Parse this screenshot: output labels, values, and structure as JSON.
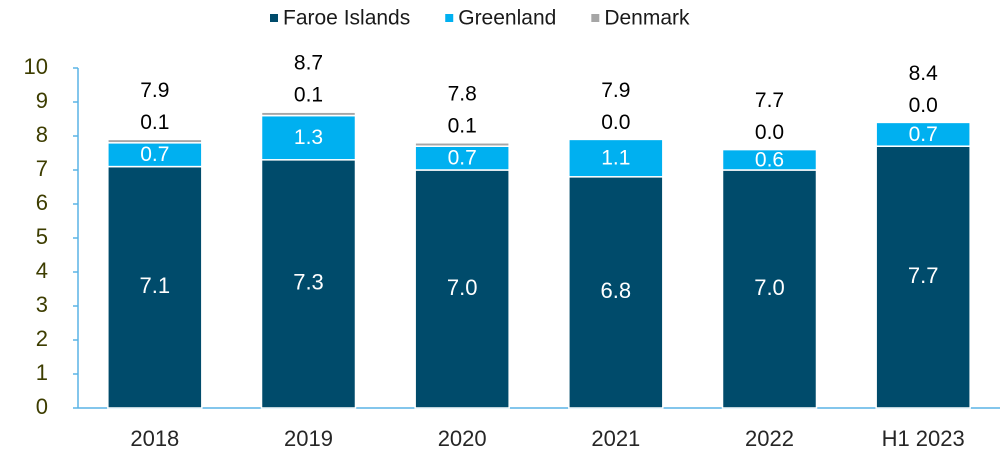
{
  "chart_data": {
    "type": "stacked_bar",
    "categories": [
      "2018",
      "2019",
      "2020",
      "2021",
      "2022",
      "H1 2023"
    ],
    "series": [
      {
        "name": "Faroe Islands",
        "color": "#004b6b",
        "values": [
          7.1,
          7.3,
          7.0,
          6.8,
          7.0,
          7.7
        ],
        "value_labels": [
          "7.1",
          "7.3",
          "7.0",
          "6.8",
          "7.0",
          "7.7"
        ]
      },
      {
        "name": "Greenland",
        "color": "#00b0f0",
        "values": [
          0.7,
          1.3,
          0.7,
          1.1,
          0.6,
          0.7
        ],
        "value_labels": [
          "0.7",
          "1.3",
          "0.7",
          "1.1",
          "0.6",
          "0.7"
        ]
      },
      {
        "name": "Denmark",
        "color": "#a6a6a6",
        "values": [
          0.1,
          0.1,
          0.1,
          0.0,
          0.0,
          0.0
        ],
        "value_labels": [
          "0.1",
          "0.1",
          "0.1",
          "0.0",
          "0.0",
          "0.0"
        ]
      }
    ],
    "totals": [
      7.9,
      8.7,
      7.8,
      7.9,
      7.7,
      8.4
    ],
    "ylim": [
      0,
      10
    ],
    "yticks": [
      0,
      1,
      2,
      3,
      4,
      5,
      6,
      7,
      8,
      9,
      10
    ],
    "legend": "top"
  }
}
